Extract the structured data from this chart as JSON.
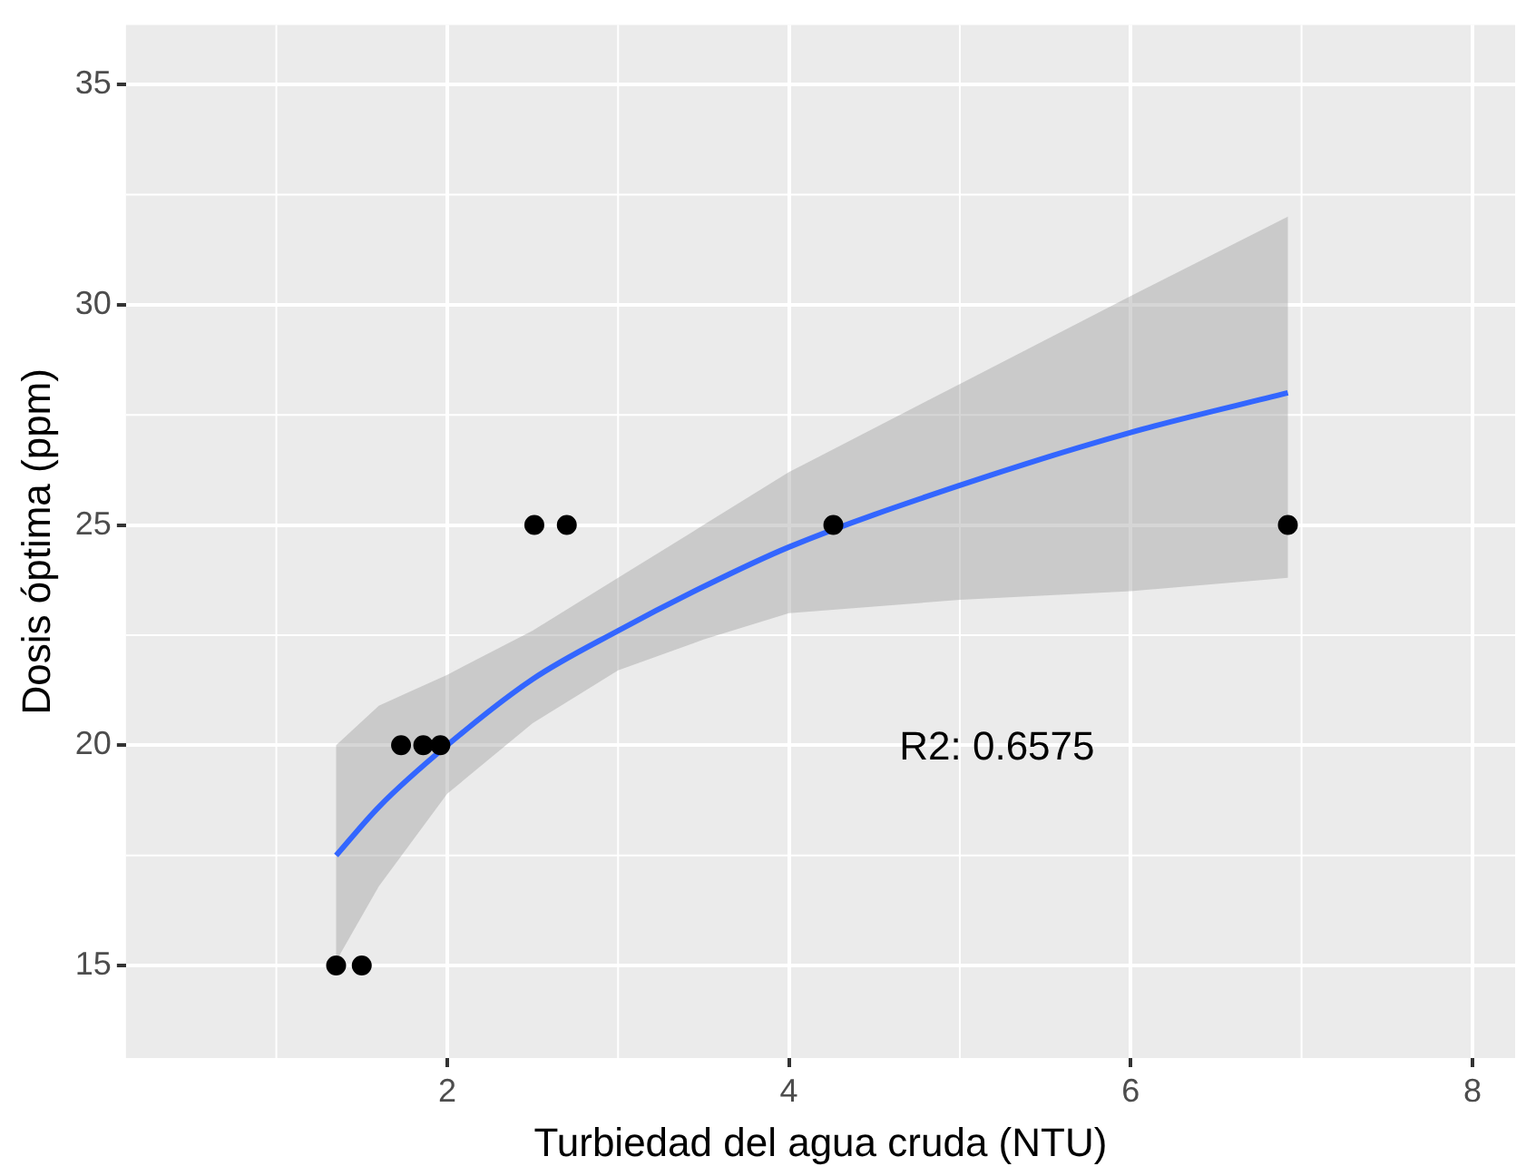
{
  "chart_data": {
    "type": "scatter",
    "xlabel": "Turbiedad del agua cruda (NTU)",
    "ylabel": "Dosis óptima (ppm)",
    "xlim": [
      0.12,
      8.25
    ],
    "ylim": [
      12.9,
      36.35
    ],
    "xticks": [
      2,
      4,
      6,
      8
    ],
    "yticks": [
      15,
      20,
      25,
      30,
      35
    ],
    "grid": true,
    "legend": false,
    "marker": "circle",
    "series": [
      {
        "color": "#000000",
        "x": [
          1.35,
          1.5,
          1.73,
          1.86,
          1.96,
          2.51,
          2.7,
          4.26,
          6.92
        ],
        "values": [
          15,
          15,
          20,
          20,
          20,
          25,
          25,
          25,
          25
        ]
      },
      {
        "type": "line",
        "color": "#3366ff",
        "marker": "none",
        "x": [
          1.35,
          1.6,
          2,
          2.5,
          3,
          3.5,
          4,
          5,
          6,
          6.92
        ],
        "values": [
          17.5,
          18.6,
          20,
          21.5,
          22.6,
          23.6,
          24.5,
          25.9,
          27.1,
          28
        ],
        "lower": [
          15.1,
          16.8,
          18.9,
          20.5,
          21.7,
          22.4,
          23,
          23.3,
          23.5,
          23.8
        ],
        "upper": [
          20,
          20.9,
          21.6,
          22.6,
          23.8,
          25,
          26.2,
          28.2,
          30.2,
          32
        ]
      }
    ],
    "annotations": [
      "R2: 0.6575"
    ]
  }
}
